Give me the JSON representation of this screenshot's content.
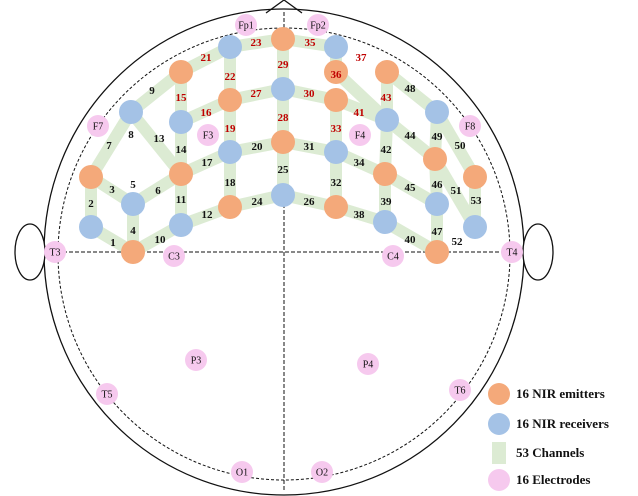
{
  "colors": {
    "emitter": "#f4a97a",
    "receiver": "#a4c2e6",
    "channel": "#dcebd3",
    "electrode": "#f6c9ee",
    "red_number": "#c00000",
    "black_number": "#111111",
    "outline": "#111111"
  },
  "electrodes": [
    "Fp1",
    "Fp2",
    "F7",
    "F3",
    "F4",
    "F8",
    "T3",
    "C3",
    "C4",
    "T4",
    "P3",
    "P4",
    "T5",
    "T6",
    "O1",
    "O2"
  ],
  "channels": [
    "1",
    "2",
    "3",
    "4",
    "5",
    "6",
    "7",
    "8",
    "9",
    "10",
    "11",
    "12",
    "13",
    "14",
    "15",
    "16",
    "17",
    "18",
    "19",
    "20",
    "21",
    "22",
    "23",
    "24",
    "25",
    "26",
    "27",
    "28",
    "29",
    "30",
    "31",
    "32",
    "33",
    "34",
    "35",
    "36",
    "37",
    "38",
    "39",
    "40",
    "41",
    "42",
    "43",
    "44",
    "45",
    "46",
    "47",
    "48",
    "49",
    "50",
    "51",
    "52",
    "53"
  ],
  "channels_in_red": [
    "15",
    "16",
    "19",
    "21",
    "22",
    "23",
    "27",
    "28",
    "29",
    "30",
    "33",
    "35",
    "36",
    "37",
    "41",
    "43"
  ],
  "legend": {
    "emitters": "16 NIR emitters",
    "receivers": "16 NIR receivers",
    "channels": "53 Channels",
    "electrodes": "16 Electrodes"
  }
}
